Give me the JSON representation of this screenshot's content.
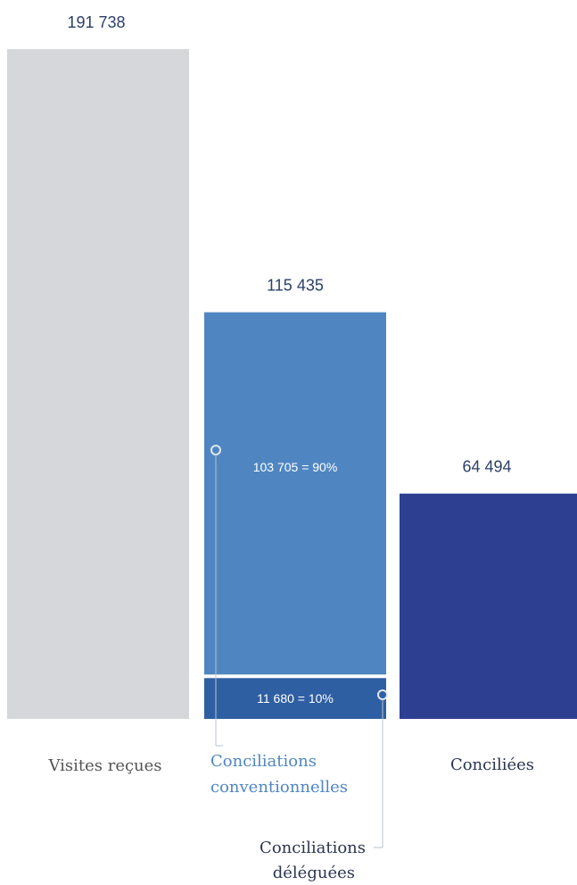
{
  "colors": {
    "visites": "#d6d7da",
    "conventionnelles": "#4f86c2",
    "deleguees": "#2f5fa3",
    "conciliees": "#2c3f91",
    "label_gray": "#555555",
    "label_blue": "#4f86c2",
    "label_navy": "#2b3552",
    "leader": "#b9c3cf"
  },
  "chart_data": {
    "type": "bar",
    "title": "",
    "xlabel": "",
    "ylabel": "",
    "ylim": [
      0,
      191738
    ],
    "grid": false,
    "categories": [
      "Visites reçues",
      "Conciliations",
      "Conciliées"
    ],
    "bars": [
      {
        "value": 191738,
        "value_label": "191 738",
        "label_lines": [
          "Visites reçues"
        ],
        "color": "#d6d7da"
      },
      {
        "value": 115435,
        "value_label": "115 435",
        "segments": [
          {
            "value": 11680,
            "label": "11 680 = 10%",
            "name_lines": [
              "Conciliations",
              "déléguées"
            ],
            "color": "#2f5fa3"
          },
          {
            "value": 103705,
            "label": "103 705 = 90%",
            "name_lines": [
              "Conciliations",
              "conventionnelles"
            ],
            "color": "#4f86c2"
          }
        ]
      },
      {
        "value": 64494,
        "value_label": "64 494",
        "label_lines": [
          "Conciliées"
        ],
        "color": "#2c3f91"
      }
    ]
  }
}
